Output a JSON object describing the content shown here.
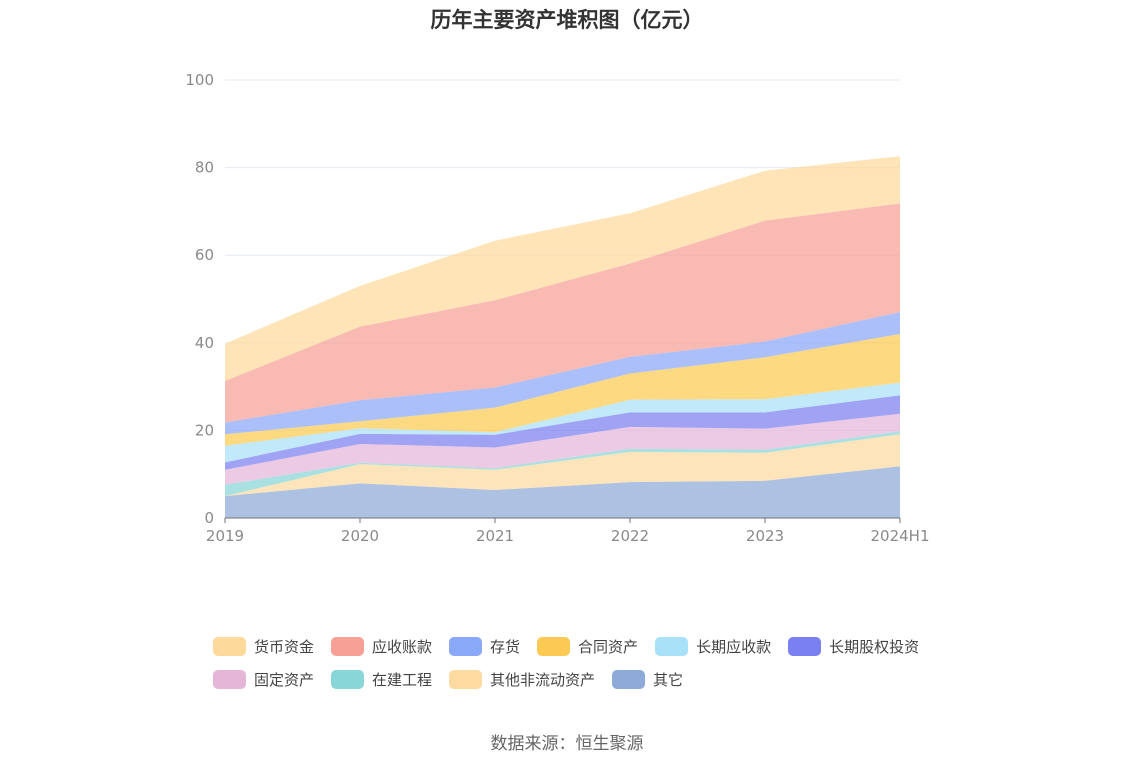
{
  "chart_data": {
    "type": "area",
    "stacked": true,
    "title": "历年主要资产堆积图（亿元）",
    "x": [
      "2019",
      "2020",
      "2021",
      "2022",
      "2023",
      "2024H1"
    ],
    "ylim": [
      0,
      100
    ],
    "yticks": [
      0,
      20,
      40,
      60,
      80,
      100
    ],
    "grid": true,
    "legend_position": "bottom",
    "series": [
      {
        "name": "其它",
        "color": "#8eaad8",
        "values": [
          5.0,
          7.9,
          6.4,
          8.2,
          8.5,
          11.8
        ]
      },
      {
        "name": "其他非流动资产",
        "color": "#fddaa0",
        "values": [
          0.0,
          4.4,
          4.6,
          6.9,
          6.4,
          7.3
        ]
      },
      {
        "name": "在建工程",
        "color": "#88d6d8",
        "values": [
          2.6,
          0.3,
          0.4,
          0.7,
          0.7,
          0.7
        ]
      },
      {
        "name": "固定资产",
        "color": "#e6b6d8",
        "values": [
          3.4,
          4.3,
          4.7,
          5.0,
          4.8,
          4.0
        ]
      },
      {
        "name": "长期股权投资",
        "color": "#7b80f0",
        "values": [
          1.7,
          2.3,
          2.9,
          3.3,
          3.7,
          4.2
        ]
      },
      {
        "name": "长期应收款",
        "color": "#a9e1f8",
        "values": [
          3.8,
          1.3,
          0.6,
          2.9,
          3.0,
          2.9
        ]
      },
      {
        "name": "合同资产",
        "color": "#fcca52",
        "values": [
          2.6,
          1.6,
          5.6,
          6.0,
          9.6,
          11.1
        ]
      },
      {
        "name": "存货",
        "color": "#8aa8f8",
        "values": [
          2.7,
          4.8,
          4.6,
          3.8,
          3.6,
          5.0
        ]
      },
      {
        "name": "应收账款",
        "color": "#f6a096",
        "values": [
          9.5,
          16.8,
          19.9,
          21.3,
          27.6,
          24.8
        ]
      },
      {
        "name": "货币资金",
        "color": "#fdd99b",
        "values": [
          8.5,
          9.3,
          13.6,
          11.5,
          11.4,
          10.8
        ]
      }
    ]
  },
  "legend": {
    "row1": [
      {
        "label": "货币资金",
        "color": "#fdd99b"
      },
      {
        "label": "应收账款",
        "color": "#f6a096"
      },
      {
        "label": "存货",
        "color": "#8aa8f8"
      },
      {
        "label": "合同资产",
        "color": "#fcca52"
      },
      {
        "label": "长期应收款",
        "color": "#a9e1f8"
      },
      {
        "label": "长期股权投资",
        "color": "#7b80f0"
      }
    ],
    "row2": [
      {
        "label": "固定资产",
        "color": "#e6b6d8"
      },
      {
        "label": "在建工程",
        "color": "#88d6d8"
      },
      {
        "label": "其他非流动资产",
        "color": "#fddaa0"
      },
      {
        "label": "其它",
        "color": "#8eaad8"
      }
    ]
  },
  "source": "数据来源：恒生聚源"
}
